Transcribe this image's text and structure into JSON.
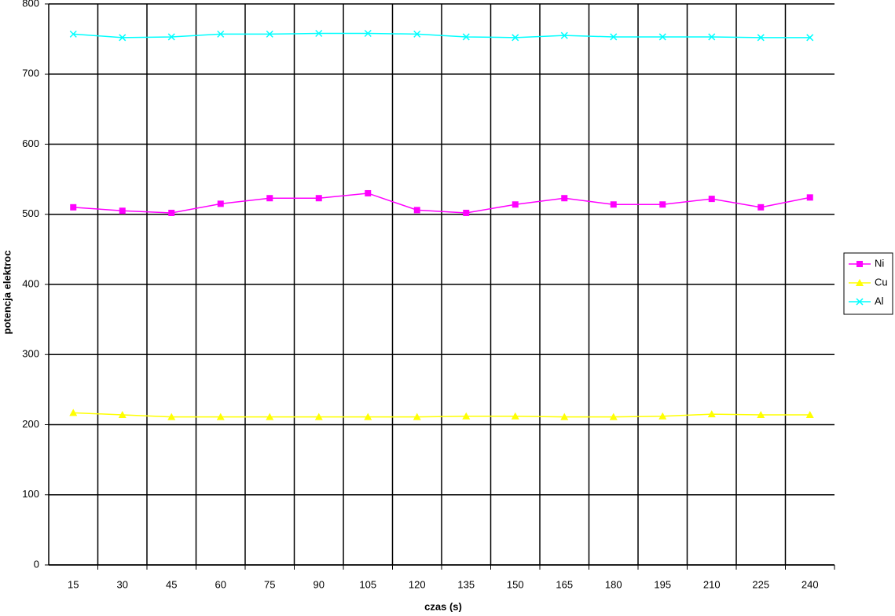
{
  "chart_data": {
    "type": "line",
    "x_label": "czas (s)",
    "y_label": "potencja  elektroc",
    "categories": [
      "15",
      "30",
      "45",
      "60",
      "75",
      "90",
      "105",
      "120",
      "135",
      "150",
      "165",
      "180",
      "195",
      "210",
      "225",
      "240"
    ],
    "series": [
      {
        "name": "Ni",
        "color": "#ff00ff",
        "marker": "square",
        "values": [
          510,
          505,
          502,
          515,
          523,
          523,
          530,
          506,
          502,
          514,
          523,
          514,
          514,
          522,
          510,
          524
        ]
      },
      {
        "name": "Cu",
        "color": "#ffff00",
        "marker": "triangle",
        "values": [
          217,
          214,
          211,
          211,
          211,
          211,
          211,
          211,
          212,
          212,
          211,
          211,
          212,
          215,
          214,
          214
        ]
      },
      {
        "name": "Al",
        "color": "#00ffff",
        "marker": "x",
        "values": [
          757,
          752,
          753,
          757,
          757,
          758,
          758,
          757,
          753,
          752,
          755,
          753,
          753,
          753,
          752,
          752
        ]
      }
    ],
    "ylim": [
      0,
      800
    ],
    "yticks": [
      0,
      100,
      200,
      300,
      400,
      500,
      600,
      700,
      800
    ],
    "grid": true
  }
}
